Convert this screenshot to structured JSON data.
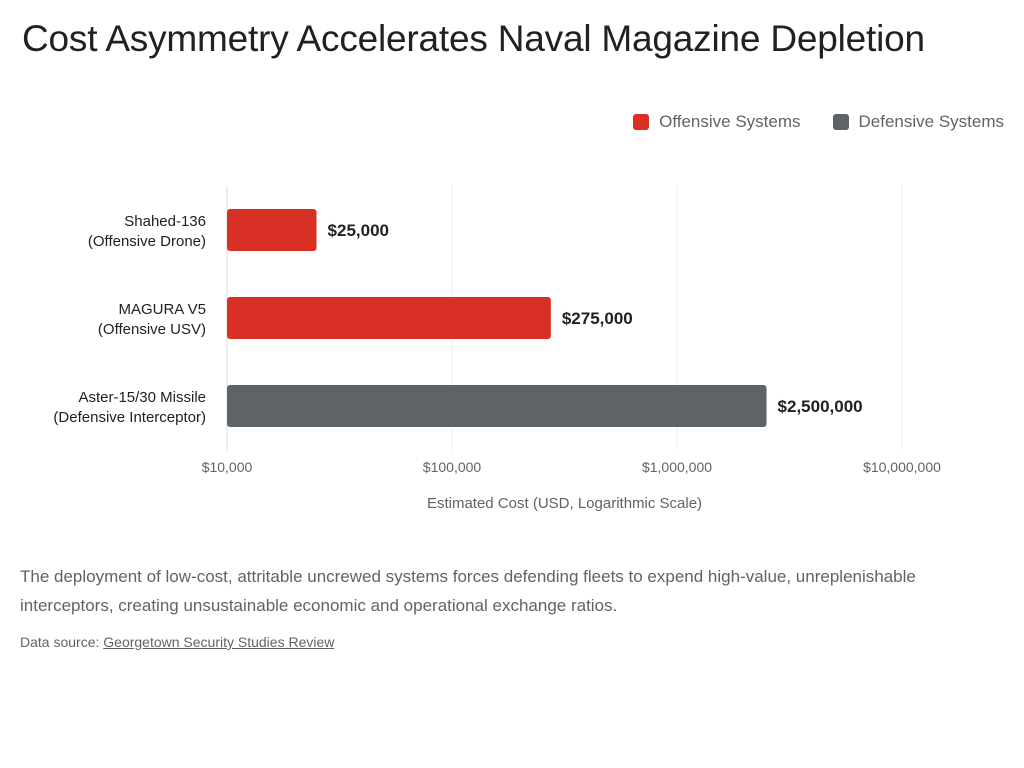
{
  "title": "Cost Asymmetry Accelerates Naval Magazine Depletion",
  "legend": [
    {
      "label": "Offensive Systems",
      "color": "#d93025"
    },
    {
      "label": "Defensive Systems",
      "color": "#5f6368"
    }
  ],
  "chart_data": {
    "type": "bar",
    "orientation": "horizontal",
    "x_scale": "log",
    "xlim": [
      10000,
      10000000
    ],
    "xticks": [
      10000,
      100000,
      1000000,
      10000000
    ],
    "xtick_labels": [
      "$10,000",
      "$100,000",
      "$1,000,000",
      "$10,000,000"
    ],
    "xlabel": "Estimated Cost (USD, Logarithmic Scale)",
    "grid": true,
    "legend_position": "top-right",
    "categories": [
      [
        "Shahed-136",
        "(Offensive Drone)"
      ],
      [
        "MAGURA V5",
        "(Offensive USV)"
      ],
      [
        "Aster-15/30 Missile",
        "(Defensive Interceptor)"
      ]
    ],
    "values": [
      25000,
      275000,
      2500000
    ],
    "data_labels": [
      "$25,000",
      "$275,000",
      "$2,500,000"
    ],
    "groups": [
      "Offensive Systems",
      "Offensive Systems",
      "Defensive Systems"
    ]
  },
  "description": "The deployment of low-cost, attritable uncrewed systems forces defending fleets to expend high-value, unreplenishable interceptors, creating unsustainable economic and operational exchange ratios.",
  "source": {
    "prefix": "Data source: ",
    "link_text": "Georgetown Security Studies Review"
  }
}
